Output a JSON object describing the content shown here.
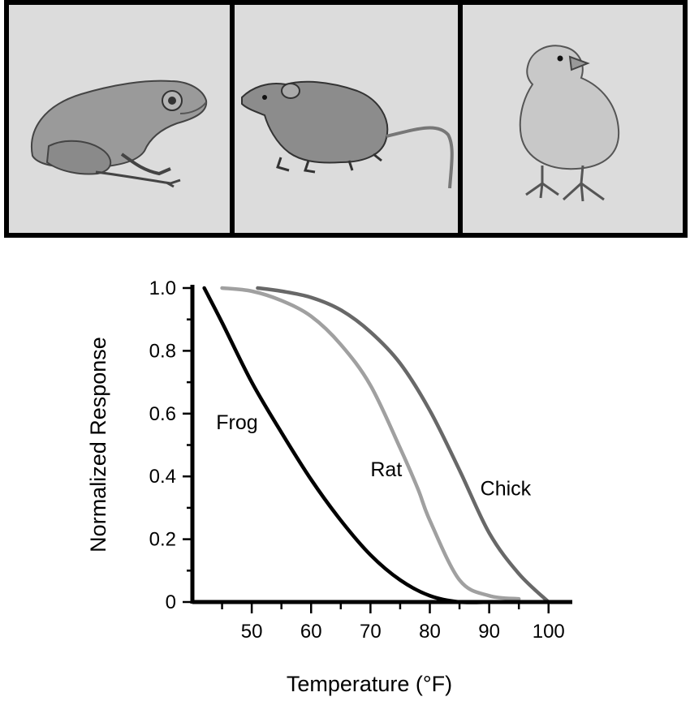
{
  "chart_data": {
    "type": "line",
    "title": "",
    "xlabel": "Temperature (°F)",
    "ylabel": "Normalized Response",
    "xlim": [
      40,
      104
    ],
    "ylim": [
      0,
      1.0
    ],
    "x_ticks": [
      "50",
      "60",
      "70",
      "80",
      "90",
      "100"
    ],
    "x_tick_values": [
      50,
      60,
      70,
      80,
      90,
      100
    ],
    "y_ticks": [
      "0",
      "0.2",
      "0.4",
      "0.6",
      "0.8",
      "1.0"
    ],
    "y_tick_values": [
      0,
      0.2,
      0.4,
      0.6,
      0.8,
      1.0
    ],
    "grid": false,
    "legend": "none (series labeled directly on lines)",
    "series": [
      {
        "name": "Frog",
        "color": "#000000",
        "x": [
          42,
          45,
          50,
          55,
          60,
          65,
          70,
          75,
          80,
          85,
          90
        ],
        "y": [
          1.0,
          0.89,
          0.7,
          0.54,
          0.39,
          0.26,
          0.15,
          0.07,
          0.02,
          0.0,
          0.0
        ]
      },
      {
        "name": "Rat",
        "color": "#a0a0a0",
        "x": [
          45,
          50,
          55,
          60,
          65,
          70,
          75,
          78,
          80,
          85,
          90,
          95
        ],
        "y": [
          1.0,
          0.99,
          0.96,
          0.91,
          0.82,
          0.69,
          0.49,
          0.36,
          0.26,
          0.07,
          0.02,
          0.01
        ]
      },
      {
        "name": "Chick",
        "color": "#686868",
        "x": [
          51,
          55,
          60,
          65,
          70,
          75,
          80,
          85,
          90,
          95,
          100
        ],
        "y": [
          1.0,
          0.99,
          0.97,
          0.93,
          0.86,
          0.76,
          0.61,
          0.42,
          0.22,
          0.09,
          0.0
        ]
      }
    ]
  },
  "panels": [
    {
      "icon": "frog-icon"
    },
    {
      "icon": "rat-icon"
    },
    {
      "icon": "chick-icon"
    }
  ]
}
